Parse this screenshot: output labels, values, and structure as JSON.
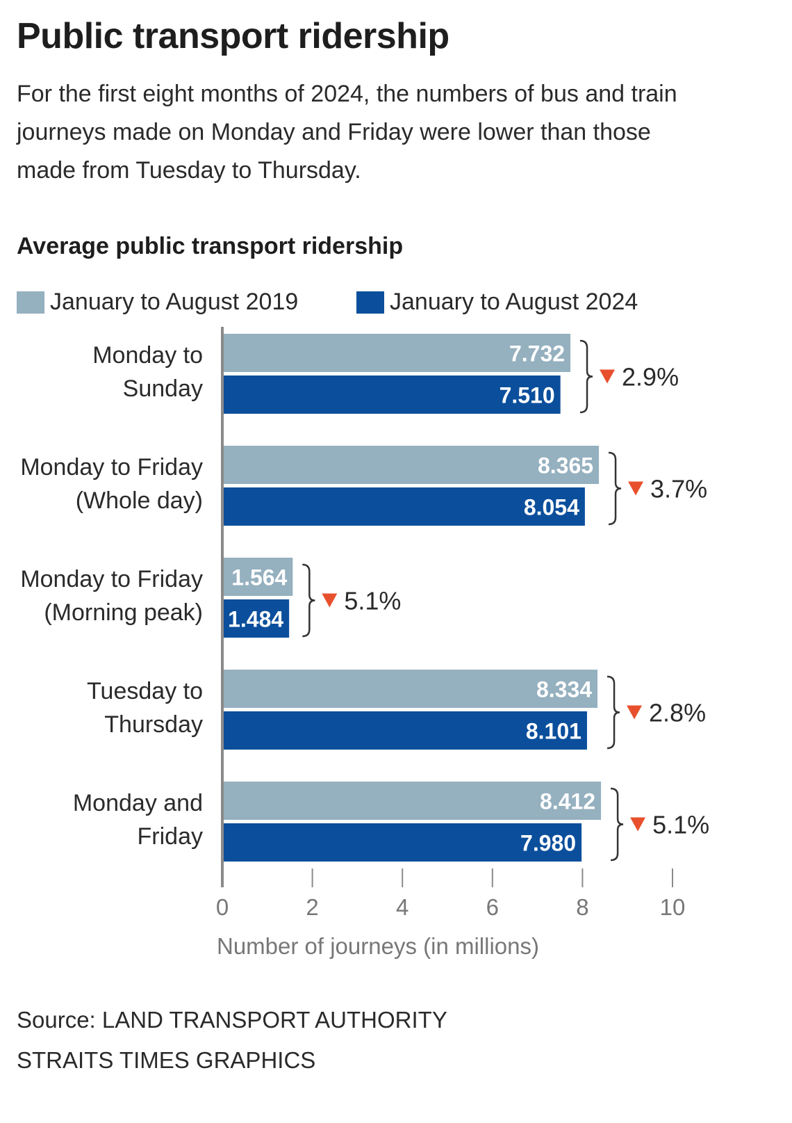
{
  "title": "Public transport ridership",
  "subtitle": "For the first eight months of 2024, the numbers of bus and train journeys made on Monday and Friday were lower than those made from Tuesday to Thursday.",
  "source": "Source: LAND TRANSPORT AUTHORITY",
  "credit": "STRAITS TIMES GRAPHICS",
  "colors": {
    "series_2019": "#95b0bf",
    "series_2024": "#0b4f9c",
    "decline_marker": "#e8502d",
    "axis": "#8a8a8a",
    "text": "#2a2a2a"
  },
  "chart_data": {
    "type": "bar",
    "orientation": "horizontal",
    "title": "Average public transport ridership",
    "xlabel": "Number of journeys (in millions)",
    "xlim": [
      0,
      10
    ],
    "xticks": [
      "0",
      "2",
      "4",
      "6",
      "8",
      "10"
    ],
    "legend_position": "top",
    "categories": [
      [
        "Monday to",
        "Sunday"
      ],
      [
        "Monday to Friday",
        "(Whole day)"
      ],
      [
        "Monday to Friday",
        "(Morning peak)"
      ],
      [
        "Tuesday to",
        "Thursday"
      ],
      [
        "Monday and",
        "Friday"
      ]
    ],
    "series": [
      {
        "name": "January to August 2019",
        "values": [
          7.732,
          8.365,
          1.564,
          8.334,
          8.412
        ],
        "labels": [
          "7.732",
          "8.365",
          "1.564",
          "8.334",
          "8.412"
        ]
      },
      {
        "name": "January to August 2024",
        "values": [
          7.51,
          8.054,
          1.484,
          8.101,
          7.98
        ],
        "labels": [
          "7.510",
          "8.054",
          "1.484",
          "8.101",
          "7.980"
        ]
      }
    ],
    "annotations": {
      "marker": "▼",
      "changes": [
        "2.9%",
        "3.7%",
        "5.1%",
        "2.8%",
        "5.1%"
      ]
    }
  }
}
